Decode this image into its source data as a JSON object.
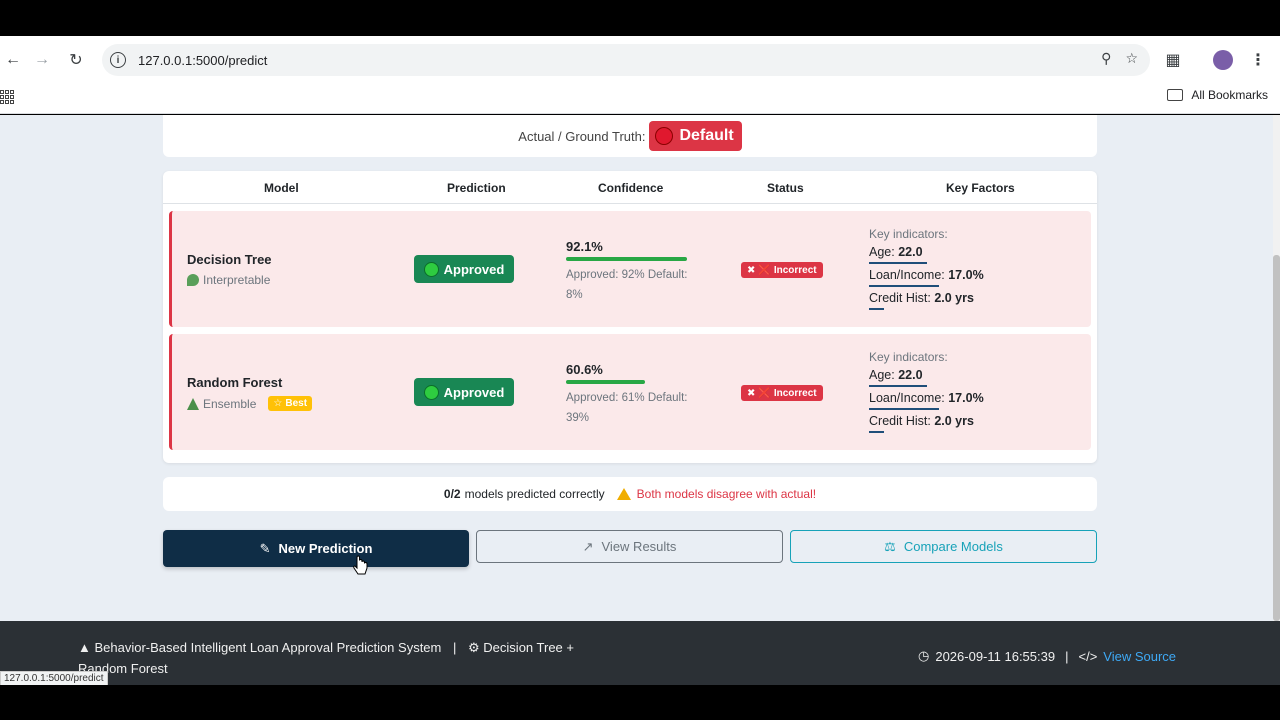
{
  "browser": {
    "url": "127.0.0.1:5000/predict",
    "bookmarks_label": "All Bookmarks",
    "status_url": "127.0.0.1:5000/predict"
  },
  "truth": {
    "label": "Actual / Ground Truth:",
    "value": "Default"
  },
  "table": {
    "headers": [
      "Model",
      "Prediction",
      "Confidence",
      "Status",
      "Key Factors"
    ],
    "rows": [
      {
        "model": "Decision Tree",
        "tag": "Interpretable",
        "badge": "",
        "prediction": "Approved",
        "confidence": "92.1%",
        "confidence_fraction": 0.921,
        "confidence_detail": "Approved: 92% Default: 8%",
        "status": "Incorrect",
        "key_title": "Key indicators:",
        "age_label": "Age:",
        "age_value": "22.0",
        "loan_label": "Loan/Income:",
        "loan_value": "17.0%",
        "credit_label": "Credit Hist:",
        "credit_value": "2.0 yrs"
      },
      {
        "model": "Random Forest",
        "tag": "Ensemble",
        "badge": "Best",
        "prediction": "Approved",
        "confidence": "60.6%",
        "confidence_fraction": 0.606,
        "confidence_detail": "Approved: 61% Default: 39%",
        "status": "Incorrect",
        "key_title": "Key indicators:",
        "age_label": "Age:",
        "age_value": "22.0",
        "loan_label": "Loan/Income:",
        "loan_value": "17.0%",
        "credit_label": "Credit Hist:",
        "credit_value": "2.0 yrs"
      }
    ]
  },
  "summary": {
    "score": "0/2",
    "text": "models predicted correctly",
    "warning": "Both models disagree with actual!"
  },
  "actions": {
    "new_prediction": "New Prediction",
    "view_results": "View Results",
    "compare_models": "Compare Models"
  },
  "footer": {
    "system_name": "Behavior-Based Intelligent Loan Approval Prediction System",
    "separator": "|",
    "models": "Decision Tree + Random Forest",
    "timestamp": "2026-09-11 16:55:39",
    "view_source": "View Source"
  },
  "colors": {
    "danger": "#dc3545",
    "success": "#198754",
    "primary_dark": "#0f2d46",
    "info": "#17a2b8",
    "warning": "#ffc107"
  }
}
